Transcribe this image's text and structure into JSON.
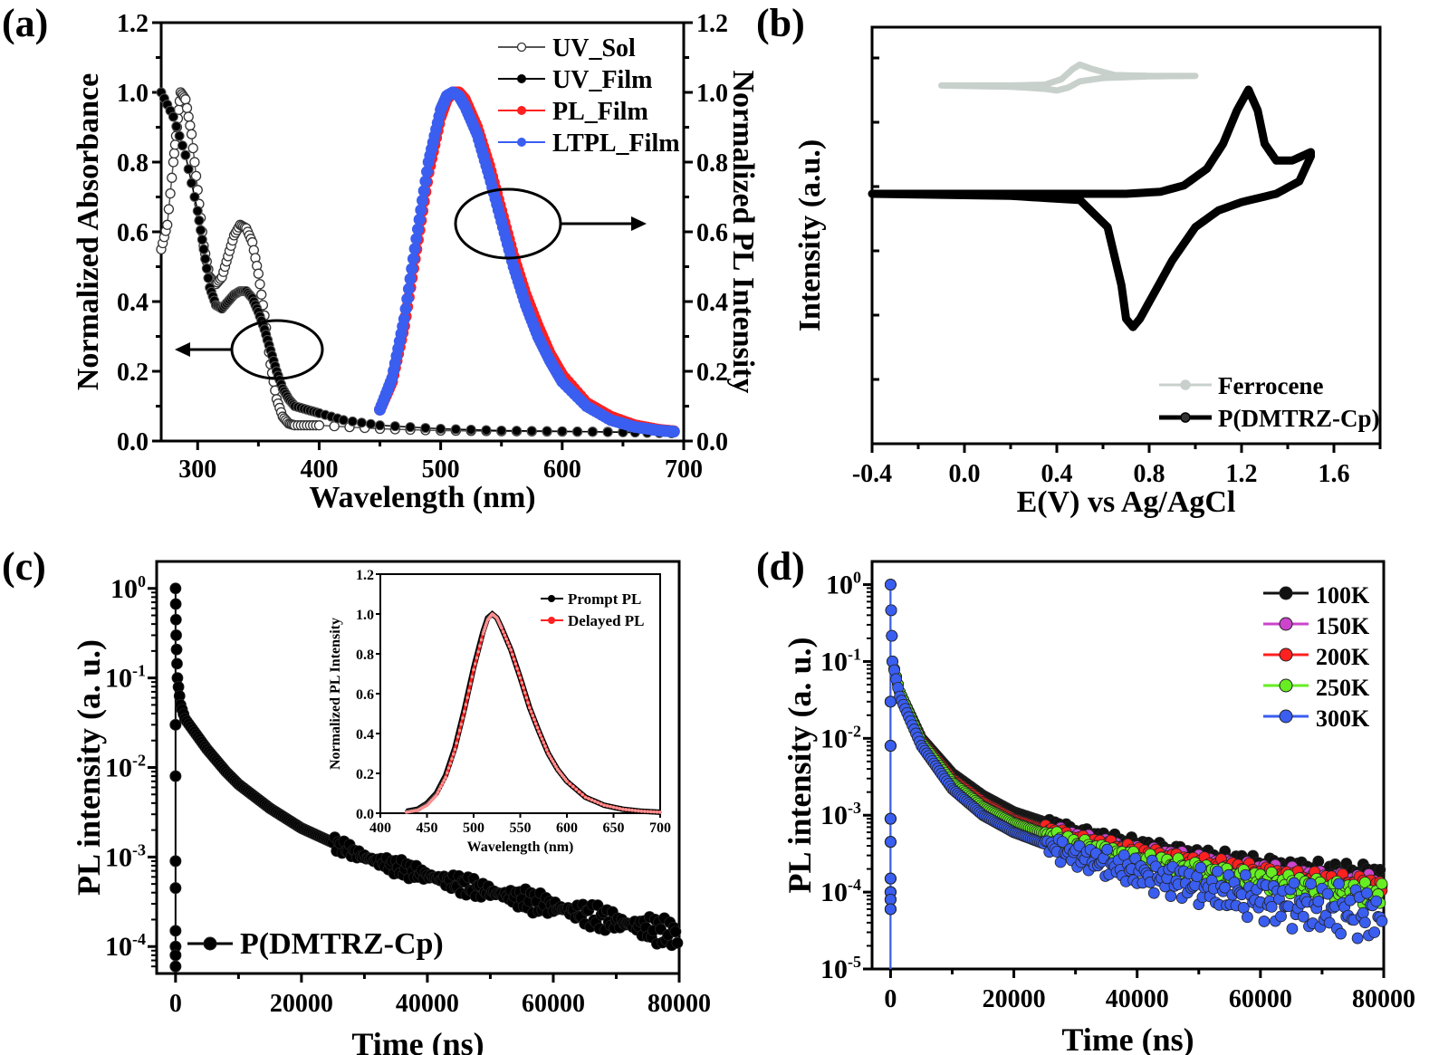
{
  "panels": {
    "a": {
      "label": "(a)"
    },
    "b": {
      "label": "(b)"
    },
    "c": {
      "label": "(c)"
    },
    "d": {
      "label": "(d)"
    }
  },
  "chart_data": [
    {
      "id": "a",
      "type": "line",
      "title": "",
      "xlabel": "Wavelength (nm)",
      "ylabel": "Normalized Absorbance",
      "y2label": "Normalized PL Intensity",
      "xlim": [
        270,
        700
      ],
      "ylim": [
        0,
        1.2
      ],
      "y2lim": [
        0,
        1.2
      ],
      "xticks": [
        "300",
        "400",
        "500",
        "600",
        "700"
      ],
      "xtick_values": [
        300,
        400,
        500,
        600,
        700
      ],
      "yticks": [
        "0.0",
        "0.2",
        "0.4",
        "0.6",
        "0.8",
        "1.0",
        "1.2"
      ],
      "ytick_values": [
        0,
        0.2,
        0.4,
        0.6,
        0.8,
        1.0,
        1.2
      ],
      "legend_position": "top-right",
      "annotations": [
        "ellipse with arrow pointing left (absorbance axis)",
        "ellipse with arrow pointing right (PL axis)"
      ],
      "series": [
        {
          "name": "UV_Sol",
          "color": "#555555",
          "marker": "open-circle",
          "axis": "left",
          "x": [
            270,
            275,
            280,
            283,
            286,
            290,
            295,
            300,
            305,
            310,
            315,
            320,
            325,
            330,
            335,
            340,
            345,
            350,
            355,
            360,
            365,
            370,
            375,
            380,
            390,
            400,
            450,
            500,
            550,
            600,
            650,
            690
          ],
          "y": [
            0.55,
            0.62,
            0.8,
            0.9,
            1.0,
            0.98,
            0.88,
            0.72,
            0.56,
            0.47,
            0.45,
            0.47,
            0.53,
            0.59,
            0.62,
            0.61,
            0.57,
            0.48,
            0.36,
            0.22,
            0.12,
            0.07,
            0.05,
            0.045,
            0.045,
            0.045,
            0.035,
            0.03,
            0.028,
            0.027,
            0.026,
            0.025
          ]
        },
        {
          "name": "UV_Film",
          "color": "#000000",
          "marker": "filled-circle",
          "axis": "left",
          "x": [
            270,
            280,
            290,
            300,
            305,
            310,
            315,
            320,
            325,
            330,
            335,
            340,
            345,
            350,
            355,
            360,
            365,
            370,
            375,
            380,
            390,
            400,
            420,
            450,
            500,
            550,
            600,
            650,
            690
          ],
          "y": [
            1.0,
            0.93,
            0.82,
            0.66,
            0.55,
            0.44,
            0.39,
            0.38,
            0.4,
            0.42,
            0.43,
            0.43,
            0.41,
            0.37,
            0.32,
            0.26,
            0.2,
            0.15,
            0.12,
            0.1,
            0.09,
            0.08,
            0.06,
            0.045,
            0.035,
            0.03,
            0.028,
            0.025,
            0.022
          ]
        },
        {
          "name": "PL_Film",
          "color": "#ff2020",
          "marker": "filled-circle",
          "axis": "right",
          "x": [
            450,
            460,
            470,
            480,
            490,
            500,
            505,
            510,
            515,
            520,
            530,
            540,
            550,
            560,
            570,
            580,
            590,
            600,
            620,
            640,
            660,
            680,
            692
          ],
          "y": [
            0.09,
            0.17,
            0.33,
            0.55,
            0.77,
            0.93,
            0.98,
            1.0,
            1.0,
            0.98,
            0.9,
            0.79,
            0.66,
            0.53,
            0.42,
            0.33,
            0.25,
            0.19,
            0.11,
            0.07,
            0.045,
            0.032,
            0.028
          ]
        },
        {
          "name": "LTPL_Film",
          "color": "#3a5ef0",
          "marker": "filled-circle",
          "axis": "right",
          "x": [
            450,
            460,
            470,
            480,
            490,
            500,
            505,
            510,
            515,
            520,
            530,
            540,
            550,
            560,
            570,
            580,
            590,
            600,
            620,
            640,
            660,
            680,
            692
          ],
          "y": [
            0.09,
            0.18,
            0.35,
            0.58,
            0.8,
            0.95,
            0.99,
            1.0,
            0.99,
            0.96,
            0.88,
            0.76,
            0.63,
            0.5,
            0.39,
            0.3,
            0.23,
            0.17,
            0.1,
            0.06,
            0.04,
            0.03,
            0.027
          ]
        }
      ]
    },
    {
      "id": "b",
      "type": "line",
      "title": "",
      "xlabel": "E(V) vs Ag/AgCl",
      "ylabel": "Intensity (a.u.)",
      "xlim": [
        -0.4,
        1.8
      ],
      "ylim": [
        0,
        1
      ],
      "xticks": [
        "-0.4",
        "0.0",
        "0.4",
        "0.8",
        "1.2",
        "1.6"
      ],
      "xtick_values": [
        -0.4,
        0.0,
        0.4,
        0.8,
        1.2,
        1.6
      ],
      "yticks": [],
      "legend_position": "bottom-right",
      "series": [
        {
          "name": "Ferrocene",
          "color": "#c8d0cc",
          "marker": "filled-circle",
          "x": [
            -0.1,
            0.2,
            0.35,
            0.42,
            0.47,
            0.5,
            0.55,
            0.65,
            0.8,
            1.0,
            1.0,
            0.8,
            0.6,
            0.5,
            0.45,
            0.4,
            0.35,
            0.2,
            -0.1
          ],
          "y": [
            0.86,
            0.86,
            0.862,
            0.875,
            0.9,
            0.91,
            0.9,
            0.885,
            0.883,
            0.883,
            0.883,
            0.882,
            0.878,
            0.87,
            0.855,
            0.848,
            0.852,
            0.857,
            0.86
          ]
        },
        {
          "name": "P(DMTRZ-Cp)",
          "color": "#000000",
          "marker": "filled-circle",
          "x": [
            -0.4,
            0.0,
            0.4,
            0.7,
            0.85,
            0.95,
            1.05,
            1.12,
            1.18,
            1.23,
            1.27,
            1.3,
            1.35,
            1.42,
            1.5,
            1.5,
            1.45,
            1.35,
            1.2,
            1.1,
            1.0,
            0.9,
            0.82,
            0.76,
            0.73,
            0.7,
            0.68,
            0.62,
            0.5,
            0.2,
            -0.4
          ],
          "y": [
            0.6,
            0.6,
            0.6,
            0.6,
            0.605,
            0.62,
            0.66,
            0.72,
            0.8,
            0.85,
            0.8,
            0.72,
            0.68,
            0.68,
            0.7,
            0.69,
            0.63,
            0.6,
            0.58,
            0.56,
            0.52,
            0.44,
            0.36,
            0.3,
            0.28,
            0.3,
            0.38,
            0.52,
            0.585,
            0.595,
            0.6
          ]
        }
      ]
    },
    {
      "id": "c",
      "type": "scatter",
      "title": "",
      "xlabel": "Time (ns)",
      "ylabel": "PL intensity (a. u.)",
      "yscale": "log",
      "xlim": [
        -3000,
        80000
      ],
      "ylim": [
        5e-05,
        2
      ],
      "xticks": [
        "0",
        "20000",
        "40000",
        "60000",
        "80000"
      ],
      "xtick_values": [
        0,
        20000,
        40000,
        60000,
        80000
      ],
      "yticks": [
        "10^0",
        "10^-1",
        "10^-2",
        "10^-3",
        "10^-4"
      ],
      "ytick_values": [
        1,
        0.1,
        0.01,
        0.001,
        0.0001
      ],
      "legend_position": "bottom-left",
      "series": [
        {
          "name": "P(DMTRZ-Cp)",
          "color": "#000000",
          "marker": "filled-circle",
          "x": [
            0,
            100,
            300,
            800,
            1500,
            3000,
            5000,
            8000,
            10000,
            15000,
            20000,
            25000,
            30000,
            35000,
            40000,
            45000,
            50000,
            55000,
            60000,
            65000,
            70000,
            75000,
            80000
          ],
          "y": [
            1.0,
            0.3,
            0.1,
            0.05,
            0.035,
            0.025,
            0.016,
            0.009,
            0.0065,
            0.0035,
            0.0021,
            0.00145,
            0.001,
            0.00078,
            0.00062,
            0.0005,
            0.00041,
            0.00034,
            0.00028,
            0.00023,
            0.00019,
            0.00016,
            0.000135
          ]
        }
      ]
    },
    {
      "id": "c-inset",
      "type": "line",
      "title": "",
      "xlabel": "Wavelength (nm)",
      "ylabel": "Normalized PL Intensity",
      "xlim": [
        400,
        700
      ],
      "ylim": [
        0,
        1.2
      ],
      "xticks": [
        "400",
        "450",
        "500",
        "550",
        "600",
        "650",
        "700"
      ],
      "xtick_values": [
        400,
        450,
        500,
        550,
        600,
        650,
        700
      ],
      "yticks": [
        "0.0",
        "0.2",
        "0.4",
        "0.6",
        "0.8",
        "1.0",
        "1.2"
      ],
      "ytick_values": [
        0,
        0.2,
        0.4,
        0.6,
        0.8,
        1.0,
        1.2
      ],
      "legend_position": "top-right",
      "series": [
        {
          "name": "Prompt PL",
          "color": "#000000",
          "marker": "filled-circle",
          "x": [
            428,
            440,
            450,
            460,
            470,
            480,
            490,
            500,
            510,
            515,
            520,
            525,
            530,
            540,
            550,
            560,
            570,
            580,
            590,
            600,
            620,
            640,
            660,
            680,
            700
          ],
          "y": [
            0.01,
            0.02,
            0.05,
            0.1,
            0.19,
            0.33,
            0.52,
            0.73,
            0.91,
            0.98,
            1.0,
            0.98,
            0.93,
            0.82,
            0.68,
            0.53,
            0.41,
            0.3,
            0.22,
            0.16,
            0.08,
            0.04,
            0.02,
            0.01,
            0.005
          ]
        },
        {
          "name": "Delayed PL",
          "color": "#ff2020",
          "marker": "filled-circle",
          "x": [
            428,
            440,
            450,
            460,
            470,
            480,
            490,
            500,
            510,
            515,
            520,
            525,
            530,
            540,
            550,
            560,
            570,
            580,
            590,
            600,
            620,
            640,
            660,
            680,
            700
          ],
          "y": [
            0.005,
            0.015,
            0.04,
            0.09,
            0.18,
            0.32,
            0.51,
            0.72,
            0.9,
            0.97,
            1.0,
            0.98,
            0.93,
            0.82,
            0.68,
            0.53,
            0.41,
            0.3,
            0.22,
            0.16,
            0.08,
            0.04,
            0.02,
            0.01,
            0.005
          ]
        }
      ]
    },
    {
      "id": "d",
      "type": "scatter",
      "title": "",
      "xlabel": "Time (ns)",
      "ylabel": "PL intensity (a. u.)",
      "yscale": "log",
      "xlim": [
        -3000,
        80000
      ],
      "ylim": [
        1e-05,
        2
      ],
      "xticks": [
        "0",
        "20000",
        "40000",
        "60000",
        "80000"
      ],
      "xtick_values": [
        0,
        20000,
        40000,
        60000,
        80000
      ],
      "yticks": [
        "10^0",
        "10^-1",
        "10^-2",
        "10^-3",
        "10^-4",
        "10^-5"
      ],
      "ytick_values": [
        1,
        0.1,
        0.01,
        0.001,
        0.0001,
        1e-05
      ],
      "legend_position": "top-right",
      "series": [
        {
          "name": "100K",
          "color": "#111111",
          "marker": "filled-circle",
          "x": [
            0,
            300,
            1500,
            5000,
            10000,
            15000,
            20000,
            30000,
            40000,
            50000,
            60000,
            70000,
            80000
          ],
          "y": [
            1.0,
            0.1,
            0.04,
            0.01,
            0.0035,
            0.0018,
            0.0011,
            0.0006,
            0.0004,
            0.00029,
            0.00022,
            0.00018,
            0.00016
          ]
        },
        {
          "name": "150K",
          "color": "#cc44cc",
          "marker": "filled-circle",
          "x": [
            0,
            300,
            1500,
            5000,
            10000,
            15000,
            20000,
            30000,
            40000,
            50000,
            60000,
            70000,
            80000
          ],
          "y": [
            1.0,
            0.1,
            0.04,
            0.0095,
            0.003,
            0.0015,
            0.0009,
            0.0005,
            0.00033,
            0.00024,
            0.00018,
            0.00014,
            0.00012
          ]
        },
        {
          "name": "200K",
          "color": "#ff2020",
          "marker": "filled-circle",
          "x": [
            0,
            300,
            1500,
            5000,
            10000,
            15000,
            20000,
            30000,
            40000,
            50000,
            60000,
            70000,
            80000
          ],
          "y": [
            1.0,
            0.1,
            0.04,
            0.0095,
            0.003,
            0.0015,
            0.0009,
            0.00048,
            0.00032,
            0.00023,
            0.00017,
            0.00013,
            0.00011
          ]
        },
        {
          "name": "250K",
          "color": "#66ee22",
          "marker": "filled-circle",
          "x": [
            0,
            300,
            1500,
            5000,
            10000,
            15000,
            20000,
            30000,
            40000,
            50000,
            60000,
            70000,
            80000
          ],
          "y": [
            1.0,
            0.1,
            0.04,
            0.009,
            0.0027,
            0.0013,
            0.0008,
            0.00042,
            0.00027,
            0.00019,
            0.00014,
            0.00011,
            9e-05
          ]
        },
        {
          "name": "300K",
          "color": "#3a5ef0",
          "marker": "filled-circle",
          "x": [
            0,
            300,
            1500,
            5000,
            10000,
            15000,
            20000,
            30000,
            40000,
            50000,
            60000,
            70000,
            80000
          ],
          "y": [
            1.0,
            0.1,
            0.035,
            0.008,
            0.0022,
            0.001,
            0.0006,
            0.0003,
            0.00018,
            0.00012,
            8e-05,
            6e-05,
            5e-05
          ]
        }
      ]
    }
  ]
}
